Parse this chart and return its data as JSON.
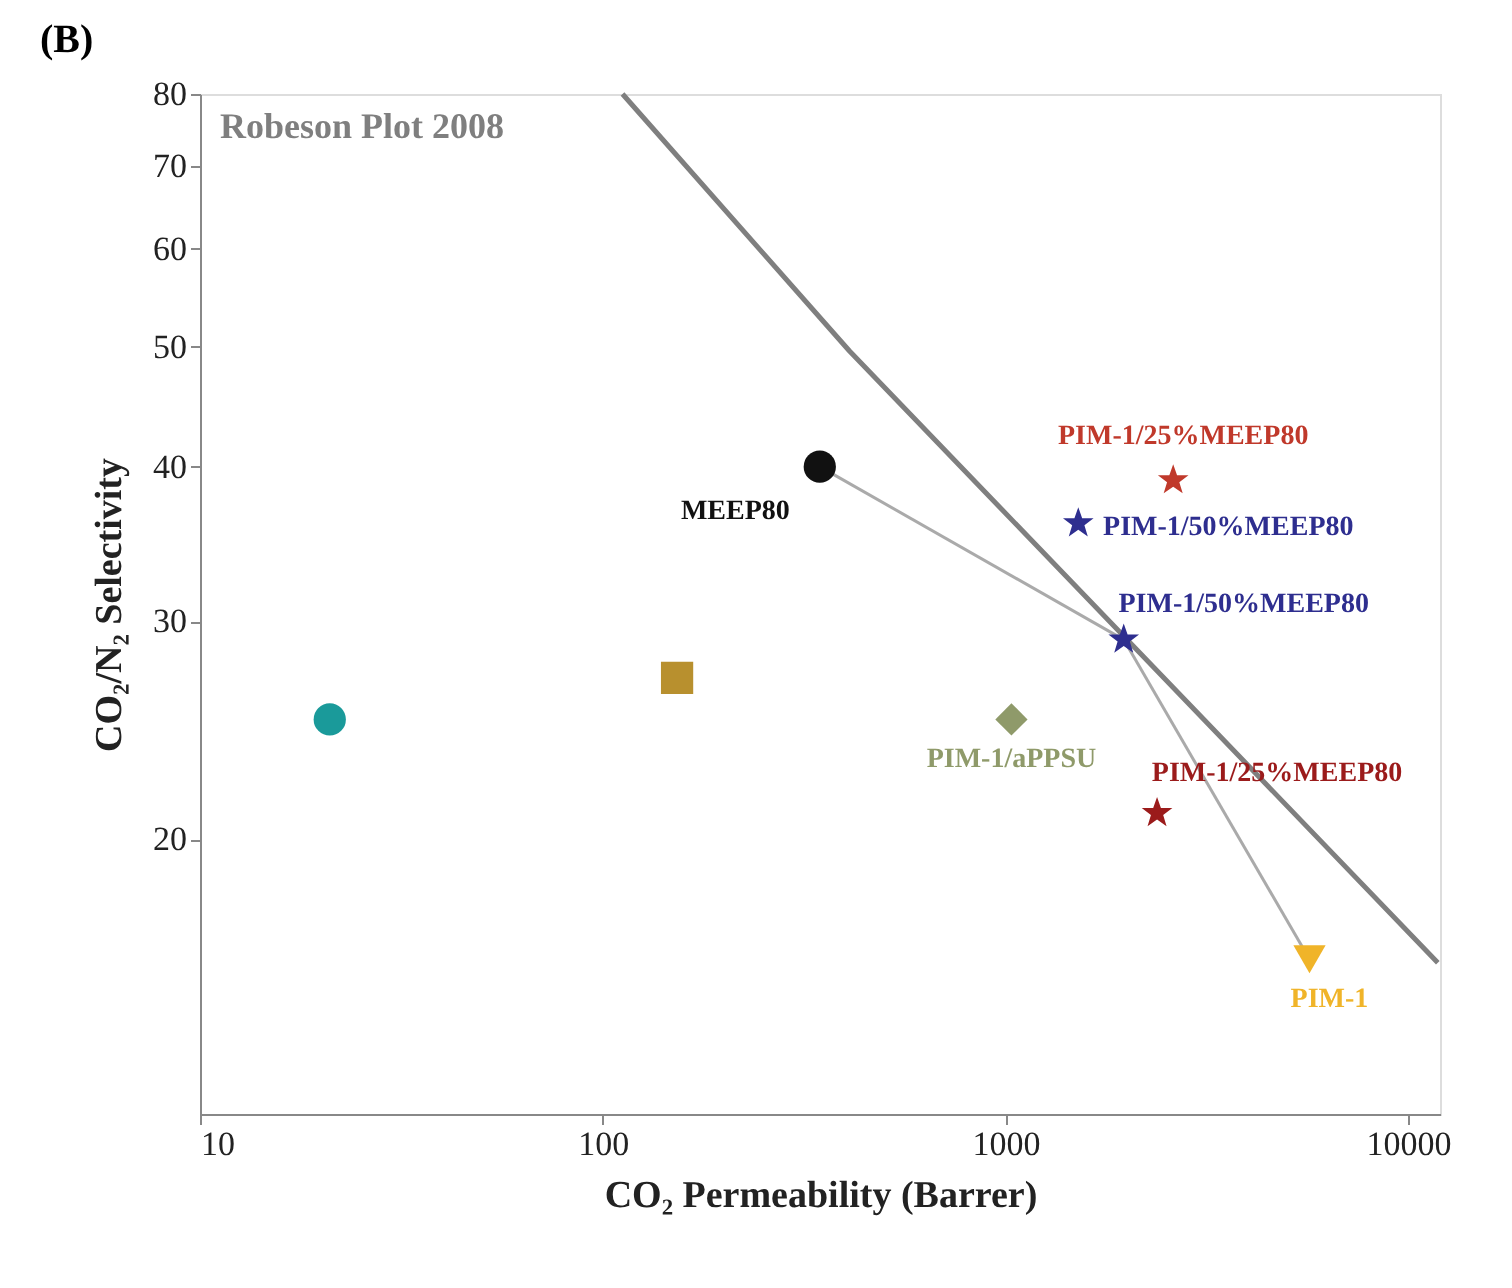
{
  "chart_data": {
    "type": "scatter",
    "title": "(B)",
    "xlabel": "CO₂ Permeability (Barrer)",
    "ylabel": "CO₂/N₂ Selectivity",
    "log": "xy",
    "xlim": [
      10,
      12000
    ],
    "xticks": [
      10,
      100,
      1000,
      10000
    ],
    "ylim": [
      12,
      80
    ],
    "yticks": [
      20,
      30,
      40,
      50,
      60,
      70,
      80
    ],
    "grid": false,
    "series": [
      {
        "name": "Robeson Plot 2008",
        "type": "line",
        "color": "#7f7f7f",
        "x": [
          112,
          410,
          11850
        ],
        "values": [
          80,
          49.6,
          15.9
        ]
      },
      {
        "color": "#1a9a9a",
        "marker": "circle",
        "x": [
          21
        ],
        "values": [
          25
        ]
      },
      {
        "color": "#b8902e",
        "marker": "square",
        "x": [
          153
        ],
        "values": [
          27
        ]
      },
      {
        "name": "PIM-1/aPPSU",
        "color": "#8f9a6a",
        "marker": "diamond",
        "x": [
          1035
        ],
        "values": [
          25
        ]
      },
      {
        "name": "MEEP80",
        "color": "#111111",
        "marker": "circle",
        "x": [
          346
        ],
        "values": [
          40
        ]
      },
      {
        "name": "PIM-1/25%MEEP80",
        "color": "#c0392b",
        "marker": "star",
        "x": [
          2610
        ],
        "values": [
          39
        ]
      },
      {
        "name": "PIM-1/50%MEEP80",
        "color": "#2e2e8f",
        "marker": "star",
        "x": [
          1517
        ],
        "values": [
          36
        ]
      },
      {
        "name": "PIM-1/50%MEEP80",
        "color": "#2e2e8f",
        "marker": "star",
        "x": [
          1967
        ],
        "values": [
          29
        ]
      },
      {
        "name": "PIM-1/25%MEEP80",
        "color": "#9b1b1b",
        "marker": "star",
        "x": [
          2380
        ],
        "values": [
          21
        ]
      },
      {
        "name": "PIM-1",
        "color": "#f0b429",
        "marker": "triangle",
        "x": [
          5690
        ],
        "values": [
          16
        ]
      }
    ]
  }
}
